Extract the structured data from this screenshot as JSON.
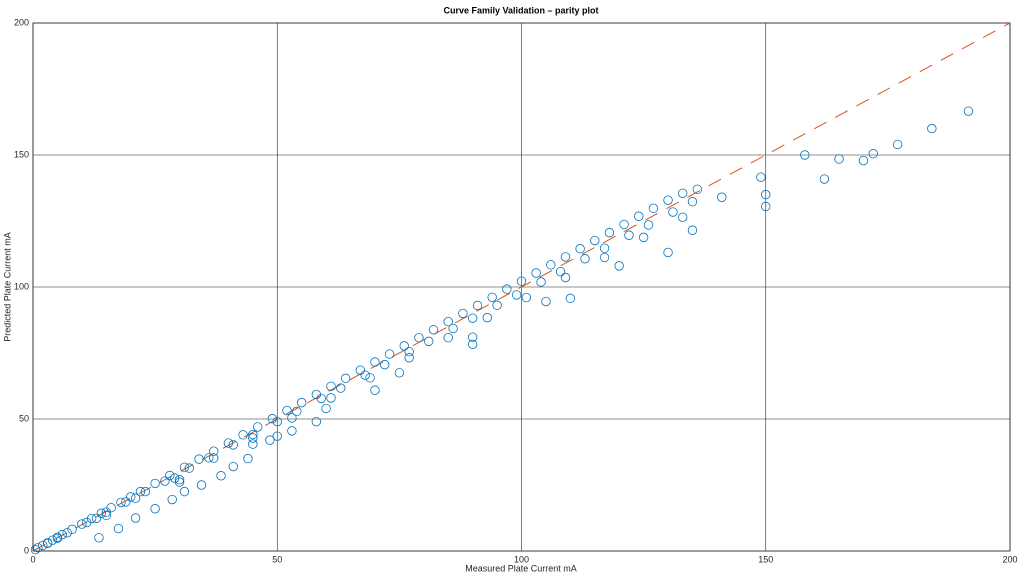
{
  "chart_data": {
    "type": "scatter",
    "title": "Curve Family Validation – parity plot",
    "x_label": "Measured Plate Current mA",
    "y_label": "Predicted Plate Current mA",
    "xlim": [
      0,
      200
    ],
    "ylim": [
      0,
      200
    ],
    "xticks": [
      0,
      50,
      100,
      150,
      200
    ],
    "yticks": [
      0,
      50,
      100,
      150,
      200
    ],
    "grid": true,
    "reference_line": {
      "x": [
        0,
        200
      ],
      "values": [
        0,
        200
      ],
      "color": "#d95319"
    },
    "series": [
      {
        "color": "#0072bd",
        "x": [
          0.5,
          1,
          2,
          3,
          4,
          5,
          6,
          8,
          10,
          12,
          14,
          16,
          18,
          20,
          22,
          25,
          28,
          31,
          34,
          37,
          40,
          43,
          46,
          49,
          52,
          55,
          58,
          61,
          64,
          67,
          70,
          73,
          76,
          79,
          82,
          85,
          88,
          91,
          94,
          97,
          100,
          103,
          106,
          109,
          112,
          115,
          118,
          121,
          124,
          127,
          130,
          133,
          136,
          3,
          7,
          11,
          15,
          19,
          23,
          27,
          32,
          36,
          41,
          45,
          50,
          54,
          59,
          63,
          68,
          72,
          77,
          81,
          86,
          90,
          95,
          99,
          104,
          108,
          113,
          117,
          122,
          126,
          131,
          135,
          5,
          13,
          21,
          29,
          37,
          45,
          53,
          61,
          69,
          77,
          85,
          93,
          101,
          109,
          117,
          125,
          133,
          141,
          149,
          158,
          15,
          30,
          45,
          60,
          75,
          90,
          105,
          120,
          135,
          150,
          165,
          172,
          30,
          50,
          70,
          90,
          110,
          130,
          150,
          162,
          170,
          177,
          184,
          191.5,
          13.5,
          17.5,
          21,
          25,
          28.5,
          31,
          34.5,
          38.5,
          41,
          44,
          48.5,
          53,
          58
        ],
        "values": [
          0.5,
          1.2,
          2.1,
          3.1,
          4.1,
          5.2,
          6.2,
          8.2,
          10.2,
          12.3,
          14.3,
          16.4,
          18.4,
          20.5,
          22.5,
          25.6,
          28.6,
          31.7,
          34.8,
          37.8,
          40.9,
          44,
          47,
          50.1,
          53.2,
          56.2,
          59.3,
          62.4,
          65.4,
          68.5,
          71.6,
          74.6,
          77.7,
          80.8,
          83.8,
          86.9,
          90,
          93,
          96.1,
          99.2,
          102.2,
          105.3,
          108.4,
          111.4,
          114.5,
          117.6,
          120.6,
          123.7,
          126.8,
          129.8,
          132.9,
          135.5,
          137,
          2.9,
          6.9,
          10.8,
          14.7,
          18.6,
          22.5,
          26.5,
          31.4,
          35.3,
          40.2,
          44.1,
          49,
          52.9,
          57.8,
          61.7,
          66.6,
          70.6,
          75.5,
          79.4,
          84.3,
          88.2,
          93.1,
          97,
          101.9,
          105.8,
          110.7,
          114.7,
          119.6,
          123.5,
          128.4,
          132.3,
          4.8,
          12.4,
          20,
          27.6,
          35.2,
          42.8,
          50.4,
          58,
          65.6,
          73.2,
          80.8,
          88.4,
          96,
          103.6,
          111.2,
          118.8,
          126.4,
          134,
          141.6,
          150,
          13.5,
          27,
          40.5,
          54,
          67.5,
          81,
          94.5,
          108,
          121.5,
          135,
          148.5,
          150.5,
          26.1,
          43.5,
          60.9,
          78.3,
          95.7,
          113.1,
          130.5,
          140.9,
          147.9,
          154,
          160,
          166.6,
          5,
          8.5,
          12.5,
          16,
          19.5,
          22.5,
          25,
          28.5,
          32,
          35,
          42,
          45.5,
          49
        ]
      }
    ]
  }
}
